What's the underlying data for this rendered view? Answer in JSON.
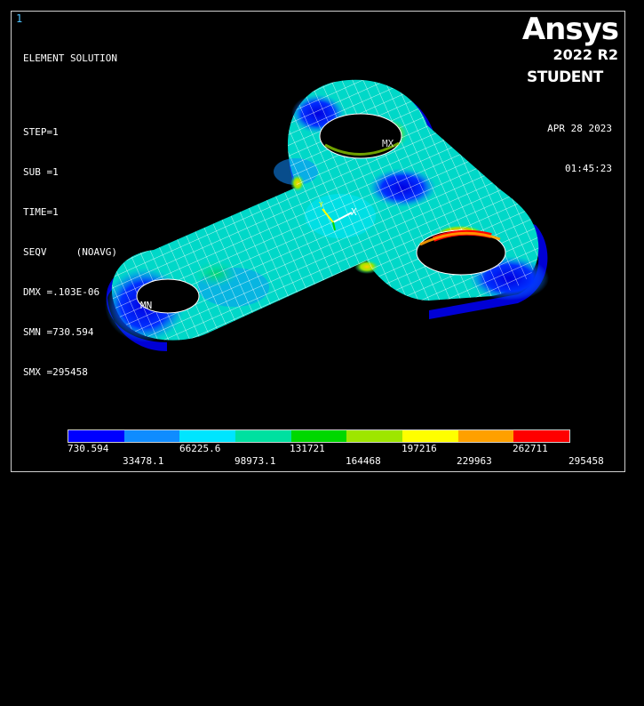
{
  "window_number": "1",
  "info": {
    "title": "ELEMENT SOLUTION",
    "lines": [
      "STEP=1",
      "SUB =1",
      "TIME=1",
      "SEQV     (NOAVG)",
      "DMX =.103E-06",
      "SMN =730.594",
      "SMX =295458"
    ]
  },
  "brand": {
    "logo": "Ansys",
    "version": "2022 R2",
    "edition": "STUDENT"
  },
  "datetime": {
    "date": "APR 28 2023",
    "time": "01:45:23"
  },
  "markers": {
    "min": "MN",
    "max": "MX",
    "axis_x": "X",
    "axis_y": "Y"
  },
  "legend": {
    "colors": [
      "#0000ff",
      "#0f8cff",
      "#00e5ff",
      "#00e0a0",
      "#00d800",
      "#9ee600",
      "#ffff00",
      "#ffa000",
      "#ff0000"
    ],
    "top_labels": [
      "730.594",
      "66225.6",
      "131721",
      "197216",
      "262711"
    ],
    "bottom_labels": [
      "33478.1",
      "98973.1",
      "164468",
      "229963",
      "295458"
    ]
  }
}
